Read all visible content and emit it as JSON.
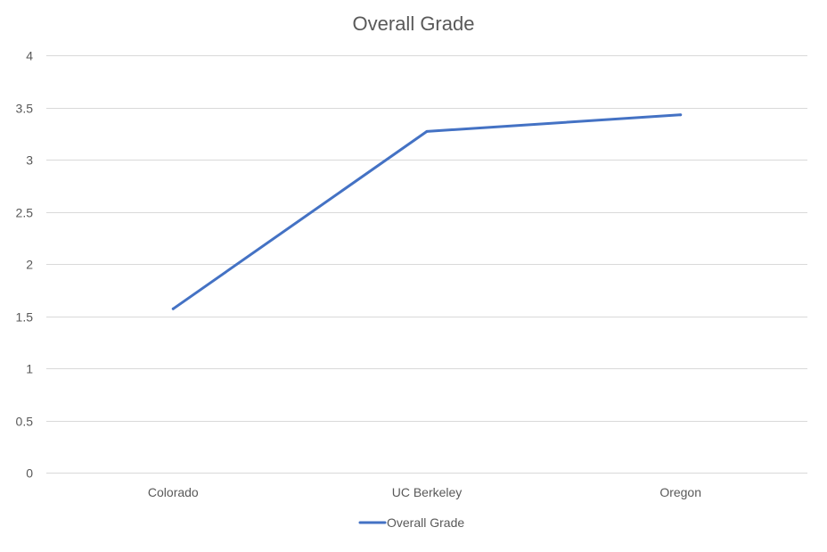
{
  "chart_data": {
    "type": "line",
    "title": "Overall Grade",
    "categories": [
      "Colorado",
      "UC Berkeley",
      "Oregon"
    ],
    "series": [
      {
        "name": "Overall Grade",
        "values": [
          1.57,
          3.27,
          3.43
        ],
        "color": "#4472c4"
      }
    ],
    "ylim": [
      0,
      4
    ],
    "y_ticks": [
      "0",
      "0.5",
      "1",
      "1.5",
      "2",
      "2.5",
      "3",
      "3.5",
      "4"
    ],
    "xlabel": "",
    "ylabel": "",
    "grid": true,
    "legend_position": "bottom"
  }
}
